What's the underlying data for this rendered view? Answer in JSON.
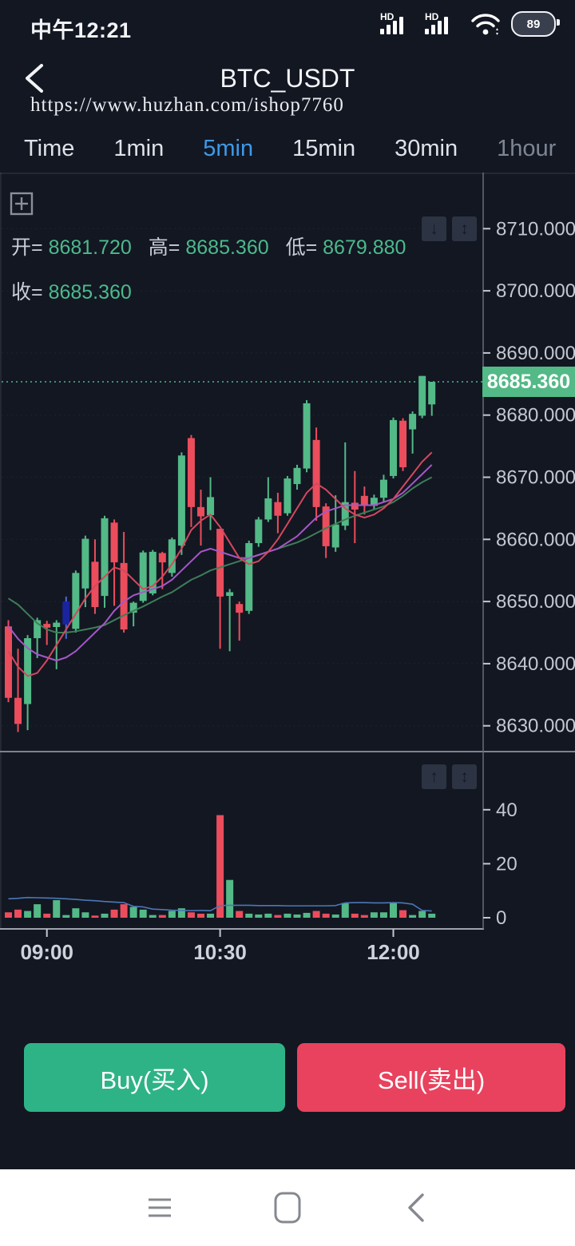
{
  "status_bar": {
    "time": "中午12:21",
    "battery_percent": "89",
    "signal1": "HD",
    "signal2": "HD"
  },
  "header": {
    "title": "BTC_USDT",
    "url": "https://www.huzhan.com/ishop7760"
  },
  "tabs": [
    {
      "label": "Time",
      "active": false,
      "dim": false
    },
    {
      "label": "1min",
      "active": false,
      "dim": false
    },
    {
      "label": "5min",
      "active": true,
      "dim": false
    },
    {
      "label": "15min",
      "active": false,
      "dim": false
    },
    {
      "label": "30min",
      "active": false,
      "dim": false
    },
    {
      "label": "1hour",
      "active": false,
      "dim": true
    }
  ],
  "ohlc": {
    "open_label": "开=",
    "open": "8681.720",
    "high_label": "高=",
    "high": "8685.360",
    "low_label": "低=",
    "low": "8679.880",
    "close_label": "收=",
    "close": "8685.360"
  },
  "price_badge": "8685.360",
  "trade_buttons": {
    "buy": "Buy(买入)",
    "sell": "Sell(卖出)"
  },
  "chart_data": {
    "type": "candlestick+volume",
    "symbol": "BTC_USDT",
    "interval": "5min",
    "current_price": 8685.36,
    "y_ticks": [
      "8710.000",
      "8700.000",
      "8690.000",
      "8680.000",
      "8670.000",
      "8660.000",
      "8650.000",
      "8640.000",
      "8630.000"
    ],
    "y_tick_values": [
      8710,
      8700,
      8690,
      8680,
      8670,
      8660,
      8650,
      8640,
      8630
    ],
    "volume_ticks": [
      "40",
      "20",
      "0"
    ],
    "volume_tick_values": [
      40,
      20,
      0
    ],
    "x_ticks": [
      "09:00",
      "10:30",
      "12:00"
    ],
    "x_tick_indices": [
      4,
      22,
      40
    ],
    "ylim": [
      8625.8,
      8719.0
    ],
    "volume_ylim": [
      0,
      63
    ],
    "legend": "off",
    "grid": "faint-dashed",
    "blue_candle_index": 6,
    "candles": [
      [
        8646.0,
        8647.0,
        8633.8,
        8634.5,
        2.0
      ],
      [
        8634.5,
        8642.4,
        8629.0,
        8630.3,
        3.0
      ],
      [
        8633.5,
        8644.6,
        8629.3,
        8644.1,
        2.5
      ],
      [
        8644.1,
        8647.4,
        8640.9,
        8647.0,
        5.0
      ],
      [
        8646.4,
        8646.9,
        8643.0,
        8645.8,
        1.5
      ],
      [
        8645.9,
        8647.0,
        8639.1,
        8646.6,
        6.5
      ],
      [
        8646.3,
        8650.8,
        8644.0,
        8650.0,
        1.0
      ],
      [
        8645.6,
        8655.0,
        8645.0,
        8654.6,
        3.5
      ],
      [
        8652.1,
        8660.6,
        8649.1,
        8660.1,
        2.0
      ],
      [
        8656.4,
        8660.0,
        8648.0,
        8649.1,
        0.8
      ],
      [
        8650.9,
        8663.8,
        8649.0,
        8663.4,
        1.5
      ],
      [
        8662.7,
        8663.2,
        8649.3,
        8656.3,
        3.0
      ],
      [
        8656.2,
        8661.2,
        8645.0,
        8645.5,
        5.0
      ],
      [
        8648.2,
        8650.0,
        8646.0,
        8649.8,
        4.0
      ],
      [
        8650.1,
        8658.2,
        8649.8,
        8657.9,
        3.0
      ],
      [
        8651.3,
        8658.3,
        8651.0,
        8658.0,
        1.0
      ],
      [
        8657.8,
        8658.0,
        8652.0,
        8656.3,
        1.0
      ],
      [
        8654.6,
        8660.3,
        8654.0,
        8660.0,
        2.5
      ],
      [
        8659.0,
        8674.0,
        8657.5,
        8673.5,
        3.5
      ],
      [
        8676.3,
        8676.8,
        8662.0,
        8665.2,
        2.0
      ],
      [
        8665.2,
        8668.0,
        8659.0,
        8663.7,
        1.5
      ],
      [
        8663.9,
        8670.0,
        8661.5,
        8666.8,
        1.5
      ],
      [
        8661.7,
        8661.7,
        8642.4,
        8650.8,
        38.0
      ],
      [
        8650.9,
        8652.0,
        8642.0,
        8651.5,
        14.0
      ],
      [
        8649.6,
        8650.0,
        8643.7,
        8648.2,
        2.5
      ],
      [
        8648.5,
        8659.8,
        8648.0,
        8659.4,
        1.5
      ],
      [
        8659.4,
        8663.6,
        8658.8,
        8663.2,
        1.2
      ],
      [
        8663.2,
        8670.0,
        8662.8,
        8666.6,
        1.5
      ],
      [
        8666.0,
        8667.5,
        8661.0,
        8663.8,
        1.0
      ],
      [
        8664.2,
        8670.2,
        8663.8,
        8669.8,
        1.5
      ],
      [
        8668.9,
        8672.0,
        8668.0,
        8671.5,
        1.2
      ],
      [
        8671.4,
        8682.4,
        8670.8,
        8681.9,
        1.8
      ],
      [
        8676.0,
        8678.0,
        8663.0,
        8665.2,
        2.5
      ],
      [
        8665.3,
        8665.8,
        8657.0,
        8658.9,
        1.5
      ],
      [
        8658.7,
        8667.1,
        8658.0,
        8662.4,
        1.2
      ],
      [
        8662.2,
        8675.6,
        8661.5,
        8666.0,
        5.5
      ],
      [
        8665.9,
        8671.0,
        8659.4,
        8664.8,
        1.5
      ],
      [
        8667.0,
        8668.5,
        8664.0,
        8665.4,
        1.0
      ],
      [
        8665.4,
        8667.2,
        8664.8,
        8666.7,
        2.0
      ],
      [
        8666.7,
        8670.4,
        8666.0,
        8669.6,
        2.0
      ],
      [
        8670.2,
        8679.6,
        8669.8,
        8679.2,
        5.5
      ],
      [
        8679.1,
        8679.5,
        8671.0,
        8671.6,
        2.8
      ],
      [
        8677.7,
        8680.6,
        8673.8,
        8680.2,
        1.0
      ],
      [
        8679.9,
        8686.3,
        8679.5,
        8686.3,
        2.5
      ],
      [
        8681.72,
        8685.36,
        8679.88,
        8685.36,
        1.5
      ]
    ],
    "ma_fast": [
      8642.0,
      8639.5,
      8638.0,
      8638.5,
      8640.5,
      8643.0,
      8645.5,
      8648.0,
      8650.5,
      8652.5,
      8654.0,
      8655.5,
      8655.0,
      8653.5,
      8652.0,
      8652.5,
      8654.0,
      8656.0,
      8658.5,
      8661.5,
      8663.0,
      8664.0,
      8662.0,
      8659.5,
      8657.0,
      8656.0,
      8656.5,
      8658.0,
      8660.0,
      8662.5,
      8665.0,
      8667.5,
      8669.0,
      8668.0,
      8666.5,
      8665.0,
      8664.0,
      8663.5,
      8664.0,
      8665.0,
      8666.5,
      8668.5,
      8670.5,
      8672.5,
      8674.0
    ],
    "ma_med": [
      8646.0,
      8644.0,
      8642.5,
      8641.5,
      8641.0,
      8640.5,
      8641.0,
      8642.0,
      8643.5,
      8645.0,
      8646.5,
      8648.5,
      8650.0,
      8651.0,
      8651.5,
      8652.0,
      8652.5,
      8653.5,
      8655.0,
      8656.5,
      8658.0,
      8658.5,
      8658.0,
      8657.5,
      8657.0,
      8657.0,
      8657.5,
      8658.0,
      8658.5,
      8659.5,
      8660.5,
      8662.0,
      8663.5,
      8664.5,
      8665.0,
      8665.5,
      8665.5,
      8665.5,
      8665.5,
      8666.0,
      8666.5,
      8667.5,
      8669.0,
      8670.5,
      8672.0
    ],
    "ma_slow": [
      8650.5,
      8649.5,
      8648.0,
      8646.5,
      8645.5,
      8645.0,
      8645.0,
      8645.2,
      8645.5,
      8645.8,
      8646.2,
      8647.0,
      8647.8,
      8648.5,
      8649.2,
      8650.0,
      8650.8,
      8651.5,
      8652.5,
      8653.5,
      8654.2,
      8655.0,
      8655.5,
      8656.0,
      8656.5,
      8657.0,
      8657.5,
      8658.0,
      8658.5,
      8659.0,
      8659.5,
      8660.2,
      8661.0,
      8661.8,
      8662.5,
      8663.2,
      8663.8,
      8664.3,
      8664.8,
      8665.3,
      8666.0,
      8667.0,
      8668.2,
      8669.2,
      8670.0
    ],
    "vol_ma": [
      7.0,
      7.2,
      7.5,
      7.4,
      7.3,
      7.2,
      7.0,
      6.8,
      6.5,
      6.3,
      6.0,
      5.8,
      5.6,
      4.2,
      4.0,
      3.2,
      3.0,
      2.8,
      2.7,
      2.6,
      2.7,
      2.6,
      4.5,
      4.6,
      4.6,
      4.6,
      4.5,
      4.5,
      4.5,
      4.4,
      4.4,
      4.4,
      4.4,
      4.4,
      4.5,
      5.5,
      5.6,
      5.6,
      5.5,
      5.5,
      5.6,
      5.5,
      5.0,
      2.7,
      2.5
    ],
    "colors": {
      "up": "#53b987",
      "down": "#eb4d5c",
      "blue_candle_body": "#1a23a0",
      "blue_candle_wick": "#4f68d8",
      "ma_fast": "#d4485e",
      "ma_med": "#a657c8",
      "ma_slow": "#3e7d58",
      "vol_ma": "#4a78b5",
      "current_line": "#4db890",
      "badge_bg": "#53b987",
      "axis": "#686d79",
      "tick_label": "#c3c7d0",
      "x_label": "#ced2da"
    }
  },
  "icons": {
    "grid_icon": "indicator-grid",
    "main_pane_buttons": [
      "↓",
      "↕"
    ],
    "vol_pane_buttons": [
      "↑",
      "↕"
    ],
    "nav": [
      "menu",
      "home",
      "back"
    ]
  }
}
